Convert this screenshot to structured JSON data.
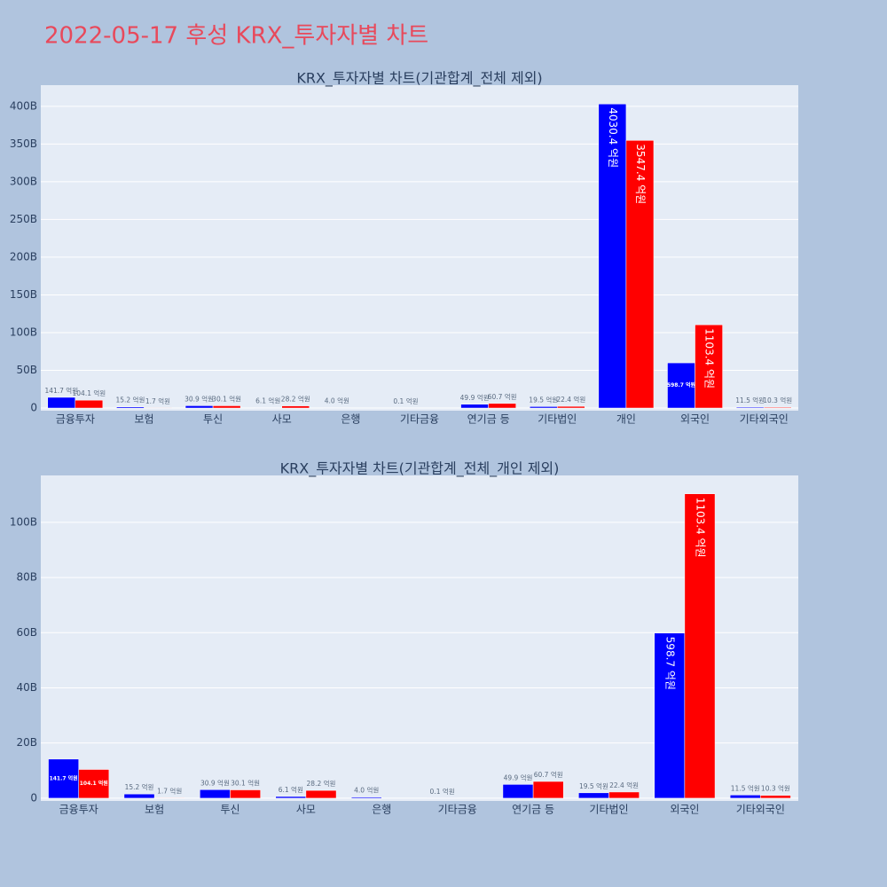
{
  "title": "2022-05-17 후성 KRX_투자자별 차트",
  "chart_data": [
    {
      "type": "bar",
      "title": "KRX_투자자별 차트(기관합계_전체 제외)",
      "categories": [
        "금융투자",
        "보험",
        "투신",
        "사모",
        "은행",
        "기타금융",
        "연기금 등",
        "기타법인",
        "개인",
        "외국인",
        "기타외국인"
      ],
      "series": [
        {
          "color": "#0000ff",
          "values": [
            14.17,
            1.52,
            3.09,
            0.61,
            0.4,
            0.01,
            4.99,
            1.95,
            403.04,
            59.87,
            1.15
          ],
          "value_labels": [
            "141.7 억원",
            "15.2 억원",
            "30.9 억원",
            "6.1 억원",
            "4.0 억원",
            "0.1 억원",
            "49.9 억원",
            "19.5 억원",
            "4030.4 억원",
            "598.7 억원",
            "11.5 억원"
          ]
        },
        {
          "color": "#ff0000",
          "values": [
            10.41,
            0.17,
            3.01,
            2.82,
            null,
            null,
            6.07,
            2.24,
            354.74,
            110.34,
            1.03
          ],
          "value_labels": [
            "104.1 억원",
            "1.7 억원",
            "30.1 억원",
            "28.2 억원",
            null,
            null,
            "60.7 억원",
            "22.4 억원",
            "3547.4 억원",
            "1103.4 억원",
            "10.3 억원"
          ]
        }
      ],
      "ylim": [
        -3.5,
        428
      ],
      "yticks": [
        0,
        {
          "value": 50,
          "label": "50B"
        },
        {
          "value": 100,
          "label": "100B"
        },
        {
          "value": 150,
          "label": "150B"
        },
        {
          "value": 200,
          "label": "200B"
        },
        {
          "value": 250,
          "label": "250B"
        },
        {
          "value": 300,
          "label": "300B"
        },
        {
          "value": 350,
          "label": "350B"
        },
        {
          "value": 400,
          "label": "400B"
        }
      ],
      "grid": true
    },
    {
      "type": "bar",
      "title": "KRX_투자자별 차트(기관합계_전체_개인 제외)",
      "categories": [
        "금융투자",
        "보험",
        "투신",
        "사모",
        "은행",
        "기타금융",
        "연기금 등",
        "기타법인",
        "외국인",
        "기타외국인"
      ],
      "series": [
        {
          "color": "#0000ff",
          "values": [
            14.17,
            1.52,
            3.09,
            0.61,
            0.4,
            0.01,
            4.99,
            1.95,
            59.87,
            1.15
          ],
          "value_labels": [
            "141.7 억원",
            "15.2 억원",
            "30.9 억원",
            "6.1 억원",
            "4.0 억원",
            "0.1 억원",
            "49.9 억원",
            "19.5 억원",
            "598.7 억원",
            "11.5 억원"
          ]
        },
        {
          "color": "#ff0000",
          "values": [
            10.41,
            0.17,
            3.01,
            2.82,
            null,
            null,
            6.07,
            2.24,
            110.34,
            1.03
          ],
          "value_labels": [
            "104.1 억원",
            "1.7 억원",
            "30.1 억원",
            "28.2 억원",
            null,
            null,
            "60.7 억원",
            "22.4 억원",
            "1103.4 억원",
            "10.3 억원"
          ]
        }
      ],
      "ylim": [
        -1,
        117
      ],
      "yticks": [
        0,
        {
          "value": 20,
          "label": "20B"
        },
        {
          "value": 40,
          "label": "40B"
        },
        {
          "value": 60,
          "label": "60B"
        },
        {
          "value": 80,
          "label": "80B"
        },
        {
          "value": 100,
          "label": "100B"
        }
      ],
      "grid": true
    }
  ]
}
